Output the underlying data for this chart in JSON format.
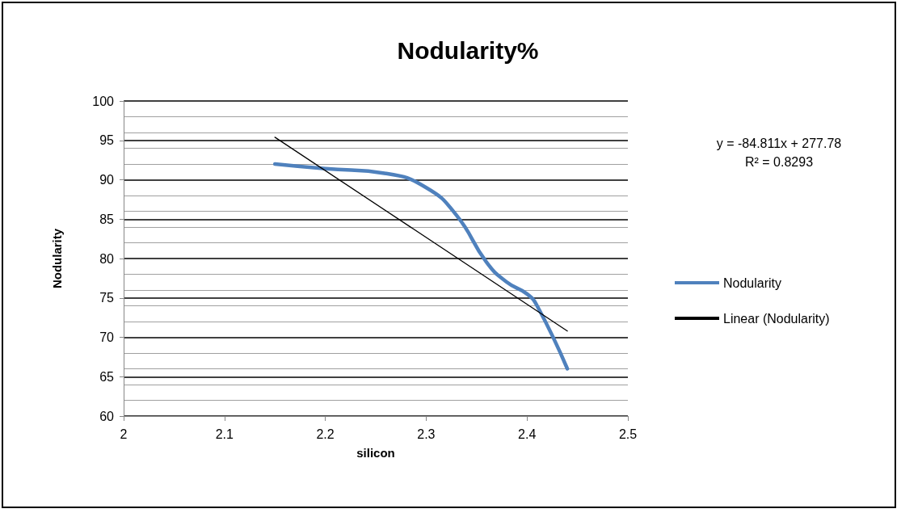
{
  "chart_data": {
    "type": "line",
    "title": "Nodularity%",
    "xlabel": "silicon",
    "ylabel": "Nodularity",
    "series": [
      {
        "name": "Nodularity",
        "color": "#4f81bd",
        "x": [
          2.15,
          2.2,
          2.26,
          2.3,
          2.33,
          2.36,
          2.38,
          2.4,
          2.41,
          2.44
        ],
        "values": [
          92,
          91.4,
          90.8,
          89,
          85.5,
          79.5,
          77,
          75.5,
          74,
          66
        ]
      },
      {
        "name": "Linear (Nodularity)",
        "color": "#000000",
        "x": [
          2.15,
          2.44
        ],
        "values": [
          95.4,
          70.8
        ]
      }
    ],
    "annotations": [
      "y = -84.811x + 277.78",
      "R² = 0.8293"
    ],
    "xlim": [
      2,
      2.5
    ],
    "xticks": [
      2,
      2.1,
      2.2,
      2.3,
      2.4,
      2.5
    ],
    "ylim": [
      60,
      100
    ],
    "yticks": [
      60,
      65,
      70,
      75,
      80,
      85,
      90,
      95,
      100
    ],
    "grid": "y",
    "legend": "right",
    "marker": "none",
    "line_style": "solid"
  }
}
